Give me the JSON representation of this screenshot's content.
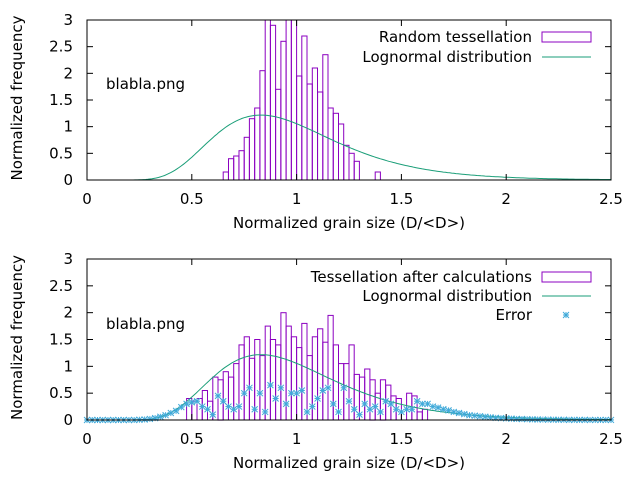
{
  "chart_data": [
    {
      "type": "bar",
      "annotation": "blabla.png",
      "xlabel": "Normalized grain size (D/<D>)",
      "ylabel": "Normalized frequency",
      "xlim": [
        0,
        2.5
      ],
      "ylim": [
        0,
        3
      ],
      "xticks": [
        "0",
        "0.5",
        "1",
        "1.5",
        "2",
        "2.5"
      ],
      "yticks": [
        "0",
        "0.5",
        "1",
        "1.5",
        "2",
        "2.5",
        "3"
      ],
      "legend_position": "top-right",
      "histogram": {
        "name": "Random tessellation",
        "bin_width": 0.025,
        "x": [
          0.65,
          0.675,
          0.7,
          0.725,
          0.75,
          0.775,
          0.8,
          0.825,
          0.85,
          0.875,
          0.9,
          0.925,
          0.95,
          0.975,
          1.0,
          1.025,
          1.05,
          1.075,
          1.1,
          1.125,
          1.15,
          1.175,
          1.2,
          1.225,
          1.25,
          1.275,
          1.375
        ],
        "values": [
          0.15,
          0.4,
          0.45,
          0.55,
          0.8,
          1.15,
          1.35,
          2.05,
          3.0,
          2.9,
          1.7,
          2.6,
          3.0,
          3.0,
          1.95,
          2.7,
          1.8,
          2.1,
          1.65,
          2.35,
          1.35,
          1.25,
          1.05,
          0.65,
          0.5,
          0.35,
          0.15
        ]
      },
      "lognormal": {
        "name": "Lognormal distribution",
        "mu": -0.0645,
        "sigma": 0.35,
        "peak_x": 0.88,
        "peak_y": 1.2
      }
    },
    {
      "type": "bar",
      "annotation": "blabla.png",
      "xlabel": "Normalized grain size (D/<D>)",
      "ylabel": "Normalized frequency",
      "xlim": [
        0,
        2.5
      ],
      "ylim": [
        0,
        3
      ],
      "xticks": [
        "0",
        "0.5",
        "1",
        "1.5",
        "2",
        "2.5"
      ],
      "yticks": [
        "0",
        "0.5",
        "1",
        "1.5",
        "2",
        "2.5",
        "3"
      ],
      "legend_position": "top-right",
      "histogram": {
        "name": "Tessellation after calculations",
        "bin_width": 0.025,
        "x": [
          0.475,
          0.5,
          0.525,
          0.55,
          0.575,
          0.6,
          0.625,
          0.65,
          0.675,
          0.7,
          0.725,
          0.75,
          0.775,
          0.8,
          0.825,
          0.85,
          0.875,
          0.9,
          0.925,
          0.95,
          0.975,
          1.0,
          1.025,
          1.05,
          1.075,
          1.1,
          1.125,
          1.15,
          1.175,
          1.2,
          1.225,
          1.25,
          1.275,
          1.3,
          1.325,
          1.35,
          1.375,
          1.4,
          1.425,
          1.45,
          1.475,
          1.525,
          1.55,
          1.575,
          1.6
        ],
        "values": [
          0.4,
          0.35,
          0.4,
          0.55,
          0.35,
          0.8,
          0.75,
          0.9,
          0.8,
          1.05,
          1.4,
          1.55,
          1.15,
          1.5,
          1.2,
          1.75,
          1.5,
          1.4,
          2.0,
          1.75,
          1.55,
          1.35,
          1.8,
          1.2,
          1.55,
          1.7,
          1.45,
          1.95,
          1.4,
          1.05,
          1.05,
          1.4,
          0.85,
          0.8,
          0.95,
          0.75,
          0.5,
          0.75,
          0.65,
          0.45,
          0.4,
          0.5,
          0.45,
          0.15,
          0.2
        ]
      },
      "lognormal": {
        "name": "Lognormal distribution",
        "mu": -0.0645,
        "sigma": 0.35,
        "peak_x": 0.88,
        "peak_y": 1.2
      },
      "error": {
        "name": "Error",
        "x": [
          0,
          0.025,
          0.05,
          0.075,
          0.1,
          0.125,
          0.15,
          0.175,
          0.2,
          0.225,
          0.25,
          0.275,
          0.3,
          0.325,
          0.35,
          0.375,
          0.4,
          0.425,
          0.45,
          0.475,
          0.5,
          0.525,
          0.55,
          0.575,
          0.6,
          0.625,
          0.65,
          0.675,
          0.7,
          0.725,
          0.75,
          0.775,
          0.8,
          0.825,
          0.85,
          0.875,
          0.9,
          0.925,
          0.95,
          0.975,
          1,
          1.025,
          1.05,
          1.075,
          1.1,
          1.125,
          1.15,
          1.175,
          1.2,
          1.225,
          1.25,
          1.275,
          1.3,
          1.325,
          1.35,
          1.375,
          1.4,
          1.425,
          1.45,
          1.475,
          1.5,
          1.525,
          1.55,
          1.575,
          1.6,
          1.625,
          1.65,
          1.675,
          1.7,
          1.725,
          1.75,
          1.775,
          1.8,
          1.825,
          1.85,
          1.875,
          1.9,
          1.925,
          1.95,
          1.975,
          2,
          2.025,
          2.05,
          2.075,
          2.1,
          2.125,
          2.15,
          2.175,
          2.2,
          2.225,
          2.25,
          2.275,
          2.3,
          2.325,
          2.35,
          2.375,
          2.4,
          2.425,
          2.45,
          2.475,
          2.5
        ],
        "values": [
          0,
          0,
          0,
          0,
          0,
          0,
          0,
          0,
          0,
          0,
          0.005,
          0.01,
          0.02,
          0.035,
          0.06,
          0.09,
          0.13,
          0.17,
          0.24,
          0.3,
          0.33,
          0.35,
          0.25,
          0.2,
          0.1,
          0.45,
          0.35,
          0.25,
          0.2,
          0.25,
          0.5,
          0.6,
          0.2,
          0.5,
          0.15,
          0.65,
          0.4,
          0.6,
          0.3,
          0.5,
          0.5,
          0.55,
          0.15,
          0.25,
          0.4,
          0.55,
          0.6,
          0.3,
          0.15,
          0.6,
          0.35,
          0.2,
          0.1,
          0.3,
          0.2,
          0.25,
          0.15,
          0.35,
          0.3,
          0.2,
          0.15,
          0.2,
          0.2,
          0.35,
          0.3,
          0.3,
          0.25,
          0.23,
          0.2,
          0.18,
          0.15,
          0.13,
          0.11,
          0.09,
          0.08,
          0.07,
          0.06,
          0.05,
          0.04,
          0.035,
          0.03,
          0.025,
          0.02,
          0.018,
          0.015,
          0.012,
          0.01,
          0.008,
          0.007,
          0.006,
          0.005,
          0.004,
          0.003,
          0.003,
          0.002,
          0.002,
          0.001,
          0.001,
          0.001,
          0.001,
          0.001
        ]
      }
    }
  ]
}
